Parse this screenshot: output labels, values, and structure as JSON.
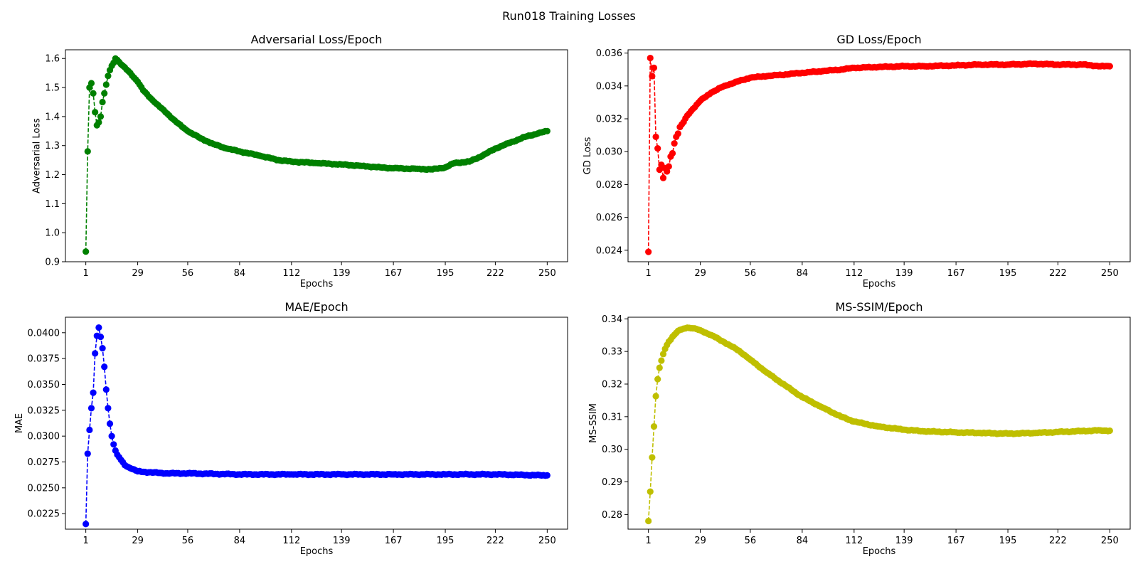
{
  "figure": {
    "title": "Run018 Training Losses"
  },
  "chart_data": [
    {
      "type": "line",
      "title": "Adversarial Loss/Epoch",
      "xlabel": "Epochs",
      "ylabel": "Adversarial Loss",
      "color": "#008000",
      "line_style": "dashed",
      "marker": "circle",
      "xlim": [
        -10,
        261
      ],
      "ylim": [
        0.9,
        1.63
      ],
      "xticks": [
        1,
        29,
        56,
        84,
        112,
        139,
        167,
        195,
        222,
        250
      ],
      "yticks": [
        0.9,
        1.0,
        1.1,
        1.2,
        1.3,
        1.4,
        1.5,
        1.6
      ],
      "x_range": [
        1,
        250
      ],
      "key_points": [
        [
          1,
          0.935
        ],
        [
          2,
          1.28
        ],
        [
          3,
          1.5
        ],
        [
          4,
          1.515
        ],
        [
          5,
          1.48
        ],
        [
          6,
          1.415
        ],
        [
          7,
          1.37
        ],
        [
          8,
          1.38
        ],
        [
          9,
          1.4
        ],
        [
          10,
          1.45
        ],
        [
          11,
          1.48
        ],
        [
          12,
          1.51
        ],
        [
          13,
          1.54
        ],
        [
          14,
          1.56
        ],
        [
          15,
          1.575
        ],
        [
          16,
          1.585
        ],
        [
          17,
          1.6
        ],
        [
          18,
          1.595
        ],
        [
          20,
          1.58
        ],
        [
          25,
          1.55
        ],
        [
          29,
          1.52
        ],
        [
          32,
          1.49
        ],
        [
          38,
          1.45
        ],
        [
          45,
          1.41
        ],
        [
          50,
          1.38
        ],
        [
          56,
          1.35
        ],
        [
          63,
          1.325
        ],
        [
          70,
          1.305
        ],
        [
          77,
          1.29
        ],
        [
          84,
          1.28
        ],
        [
          95,
          1.265
        ],
        [
          105,
          1.25
        ],
        [
          112,
          1.245
        ],
        [
          125,
          1.24
        ],
        [
          139,
          1.235
        ],
        [
          150,
          1.23
        ],
        [
          160,
          1.225
        ],
        [
          167,
          1.222
        ],
        [
          180,
          1.22
        ],
        [
          188,
          1.218
        ],
        [
          195,
          1.225
        ],
        [
          200,
          1.24
        ],
        [
          208,
          1.245
        ],
        [
          215,
          1.265
        ],
        [
          222,
          1.29
        ],
        [
          230,
          1.31
        ],
        [
          238,
          1.33
        ],
        [
          245,
          1.342
        ],
        [
          250,
          1.35
        ]
      ]
    },
    {
      "type": "line",
      "title": "GD Loss/Epoch",
      "xlabel": "Epochs",
      "ylabel": "GD Loss",
      "color": "#ff0000",
      "line_style": "dashed",
      "marker": "circle",
      "xlim": [
        -10,
        261
      ],
      "ylim": [
        0.0233,
        0.0362
      ],
      "xticks": [
        1,
        29,
        56,
        84,
        112,
        139,
        167,
        195,
        222,
        250
      ],
      "yticks": [
        0.024,
        0.026,
        0.028,
        0.03,
        0.032,
        0.034,
        0.036
      ],
      "x_range": [
        1,
        250
      ],
      "key_points": [
        [
          1,
          0.0239
        ],
        [
          2,
          0.0357
        ],
        [
          3,
          0.0346
        ],
        [
          4,
          0.0351
        ],
        [
          5,
          0.0309
        ],
        [
          6,
          0.0302
        ],
        [
          7,
          0.0289
        ],
        [
          8,
          0.0292
        ],
        [
          9,
          0.0284
        ],
        [
          10,
          0.029
        ],
        [
          11,
          0.0288
        ],
        [
          12,
          0.0291
        ],
        [
          13,
          0.0297
        ],
        [
          14,
          0.0299
        ],
        [
          15,
          0.0305
        ],
        [
          16,
          0.0309
        ],
        [
          17,
          0.0311
        ],
        [
          18,
          0.0315
        ],
        [
          20,
          0.0318
        ],
        [
          22,
          0.0322
        ],
        [
          25,
          0.0326
        ],
        [
          29,
          0.0331
        ],
        [
          35,
          0.0336
        ],
        [
          42,
          0.034
        ],
        [
          50,
          0.0343
        ],
        [
          56,
          0.0345
        ],
        [
          65,
          0.0346
        ],
        [
          75,
          0.0347
        ],
        [
          84,
          0.0348
        ],
        [
          95,
          0.0349
        ],
        [
          105,
          0.035
        ],
        [
          112,
          0.0351
        ],
        [
          125,
          0.03515
        ],
        [
          139,
          0.0352
        ],
        [
          150,
          0.0352
        ],
        [
          167,
          0.03525
        ],
        [
          180,
          0.0353
        ],
        [
          195,
          0.0353
        ],
        [
          210,
          0.03535
        ],
        [
          222,
          0.0353
        ],
        [
          235,
          0.0353
        ],
        [
          245,
          0.0352
        ],
        [
          250,
          0.0352
        ]
      ]
    },
    {
      "type": "line",
      "title": "MAE/Epoch",
      "xlabel": "Epochs",
      "ylabel": "MAE",
      "color": "#0000ff",
      "line_style": "dashed",
      "marker": "circle",
      "xlim": [
        -10,
        261
      ],
      "ylim": [
        0.021,
        0.0415
      ],
      "xticks": [
        1,
        29,
        56,
        84,
        112,
        139,
        167,
        195,
        222,
        250
      ],
      "yticks": [
        0.0225,
        0.025,
        0.0275,
        0.03,
        0.0325,
        0.035,
        0.0375,
        0.04
      ],
      "x_range": [
        1,
        250
      ],
      "key_points": [
        [
          1,
          0.0215
        ],
        [
          2,
          0.0283
        ],
        [
          3,
          0.0306
        ],
        [
          4,
          0.0327
        ],
        [
          5,
          0.0342
        ],
        [
          6,
          0.038
        ],
        [
          7,
          0.0397
        ],
        [
          8,
          0.0405
        ],
        [
          9,
          0.0396
        ],
        [
          10,
          0.0385
        ],
        [
          11,
          0.0367
        ],
        [
          12,
          0.0345
        ],
        [
          13,
          0.0327
        ],
        [
          14,
          0.0312
        ],
        [
          15,
          0.03
        ],
        [
          16,
          0.0292
        ],
        [
          17,
          0.0286
        ],
        [
          18,
          0.0282
        ],
        [
          20,
          0.0277
        ],
        [
          22,
          0.0272
        ],
        [
          25,
          0.0269
        ],
        [
          29,
          0.0266
        ],
        [
          35,
          0.0265
        ],
        [
          45,
          0.0264
        ],
        [
          56,
          0.0264
        ],
        [
          84,
          0.0263
        ],
        [
          112,
          0.0263
        ],
        [
          139,
          0.0263
        ],
        [
          167,
          0.0263
        ],
        [
          195,
          0.0263
        ],
        [
          222,
          0.0263
        ],
        [
          250,
          0.0262
        ]
      ]
    },
    {
      "type": "line",
      "title": "MS-SSIM/Epoch",
      "xlabel": "Epochs",
      "ylabel": "MS-SSIM",
      "color": "#bfbf00",
      "line_style": "dashed",
      "marker": "circle",
      "xlim": [
        -10,
        261
      ],
      "ylim": [
        0.2755,
        0.3405
      ],
      "xticks": [
        1,
        29,
        56,
        84,
        112,
        139,
        167,
        195,
        222,
        250
      ],
      "yticks": [
        0.28,
        0.29,
        0.3,
        0.31,
        0.32,
        0.33,
        0.34
      ],
      "x_range": [
        1,
        250
      ],
      "key_points": [
        [
          1,
          0.278
        ],
        [
          2,
          0.287
        ],
        [
          3,
          0.2975
        ],
        [
          4,
          0.307
        ],
        [
          5,
          0.3163
        ],
        [
          6,
          0.3215
        ],
        [
          7,
          0.325
        ],
        [
          8,
          0.3272
        ],
        [
          9,
          0.3292
        ],
        [
          10,
          0.3308
        ],
        [
          11,
          0.332
        ],
        [
          12,
          0.333
        ],
        [
          14,
          0.3345
        ],
        [
          16,
          0.3357
        ],
        [
          18,
          0.3366
        ],
        [
          20,
          0.337
        ],
        [
          22,
          0.3373
        ],
        [
          25,
          0.3371
        ],
        [
          29,
          0.3365
        ],
        [
          35,
          0.335
        ],
        [
          42,
          0.3328
        ],
        [
          50,
          0.3302
        ],
        [
          56,
          0.3275
        ],
        [
          65,
          0.3235
        ],
        [
          75,
          0.3195
        ],
        [
          84,
          0.316
        ],
        [
          95,
          0.3128
        ],
        [
          105,
          0.31
        ],
        [
          112,
          0.3085
        ],
        [
          125,
          0.307
        ],
        [
          139,
          0.306
        ],
        [
          150,
          0.3055
        ],
        [
          167,
          0.3052
        ],
        [
          180,
          0.305
        ],
        [
          195,
          0.3048
        ],
        [
          210,
          0.305
        ],
        [
          222,
          0.3053
        ],
        [
          235,
          0.3056
        ],
        [
          245,
          0.3058
        ],
        [
          250,
          0.3057
        ]
      ]
    }
  ]
}
